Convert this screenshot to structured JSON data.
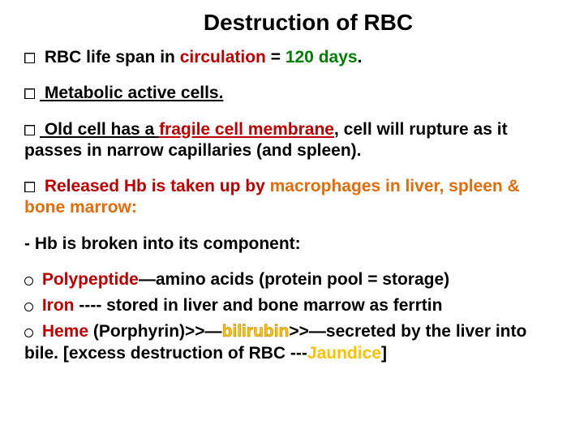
{
  "title": "Destruction of RBC",
  "colors": {
    "black": "#000000",
    "red": "#c00000",
    "green": "#008000",
    "orange": "#e46c0a",
    "yellow": "#ffc000",
    "bilirubin_fill": "#ffff99"
  },
  "line1": {
    "pre": " RBC life span in ",
    "circulation": "circulation",
    "eq": " = ",
    "days": "120 days",
    "dot": "."
  },
  "line2": {
    "text": " Metabolic active cells."
  },
  "line3": {
    "a": " Old cell has a ",
    "fragile": "fragile cell membrane",
    "b": ", cell will rupture as it passes in narrow capillaries (and spleen)."
  },
  "line4": {
    "released": " Released Hb is taken up by ",
    "macro": "macrophages in liver, spleen & bone marrow:"
  },
  "line5": "- Hb is broken into its component:",
  "line6": {
    "poly": " Polypeptide",
    "rest": "—amino acids (protein pool = storage)"
  },
  "line7": {
    "iron": " Iron",
    "rest": " ---- stored in liver and bone marrow as ferrtin"
  },
  "line8": {
    "heme": " Heme",
    "por": " (Porphyrin)>>—",
    "bili": "bilirubin",
    "sec": ">>—secreted by the liver into bile. [excess destruction of RBC ---",
    "jaundice": "Jaundice",
    "end": "]"
  },
  "fontsizes": {
    "title": 28,
    "body": 21
  },
  "background_color": "#ffffff"
}
